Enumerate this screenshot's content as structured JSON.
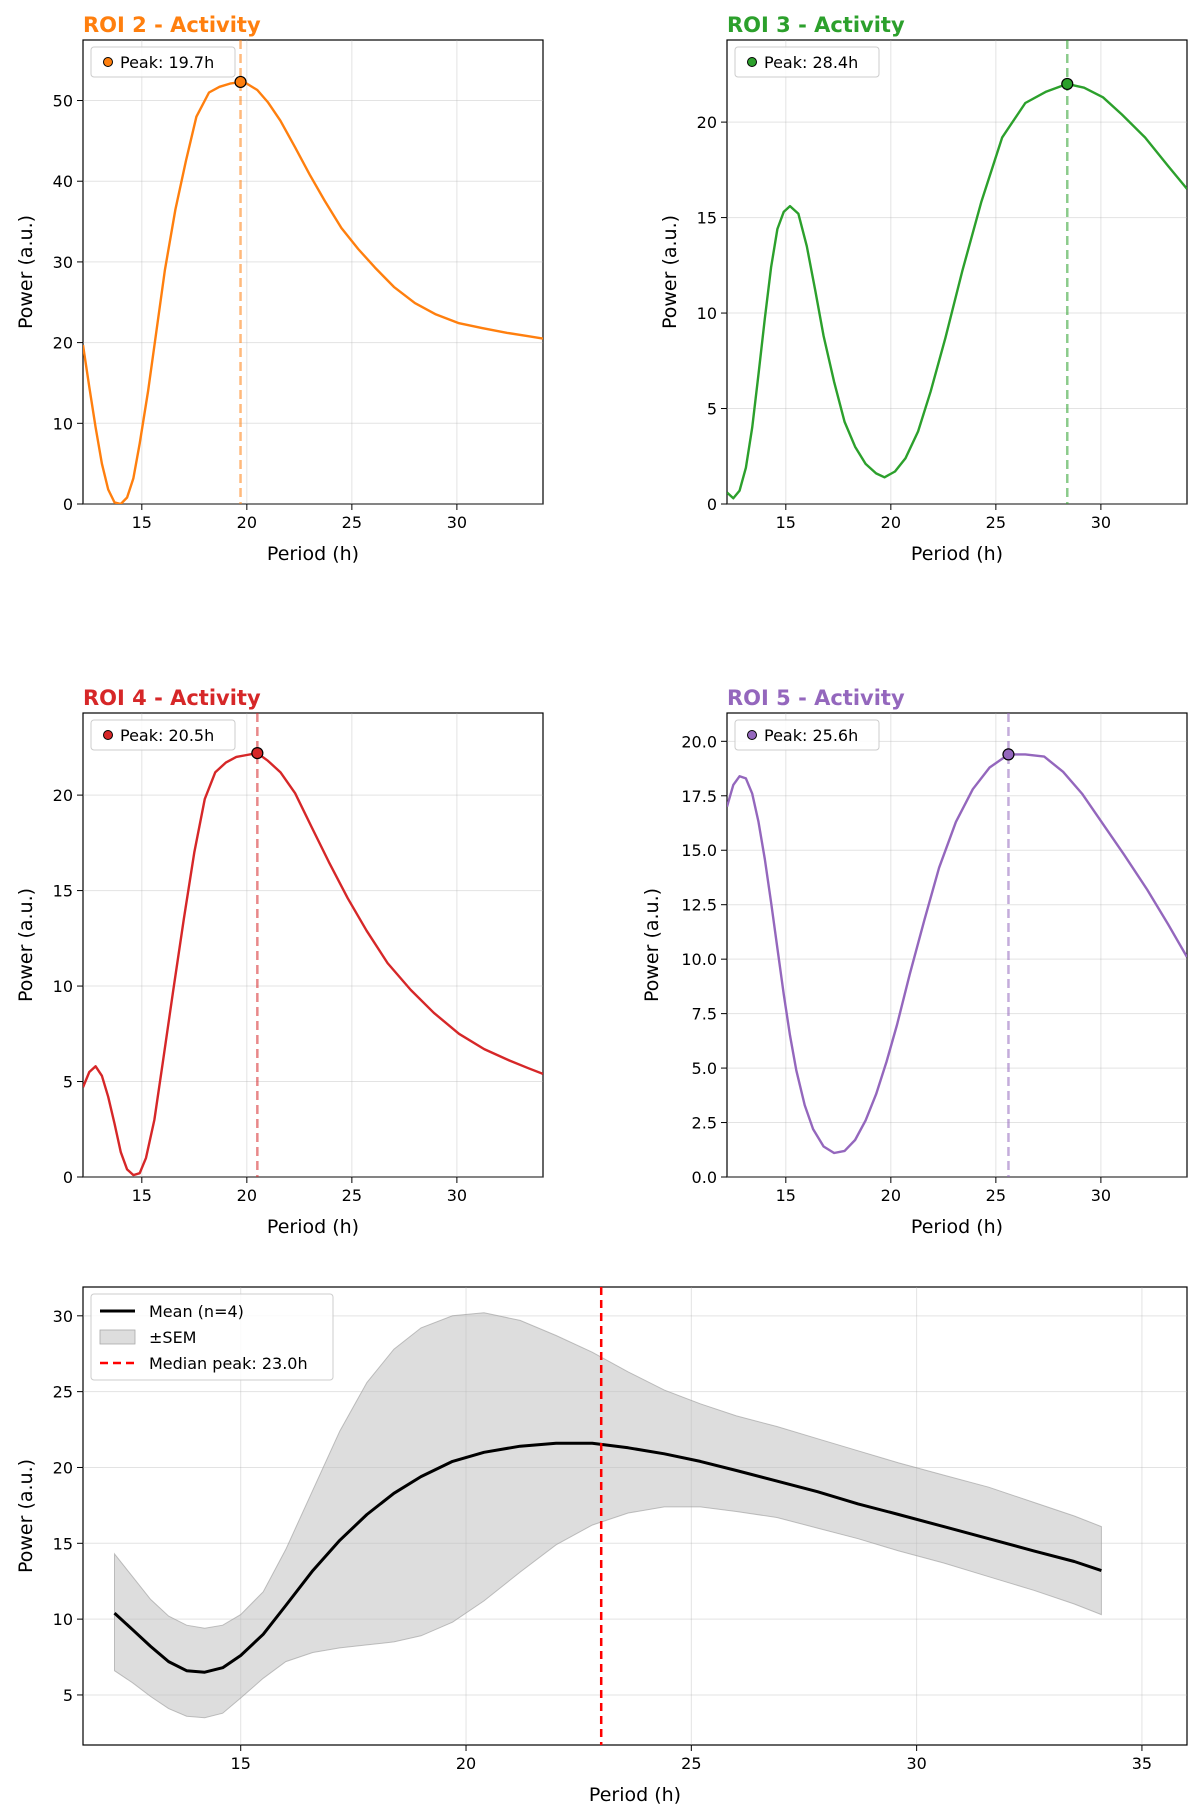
{
  "chart_data": [
    {
      "type": "line",
      "title": "ROI 2 - Activity",
      "color": "#ff7f0e",
      "xlabel": "Period (h)",
      "ylabel": "Power (a.u.)",
      "xlim": [
        12.2,
        34.1
      ],
      "ylim": [
        0,
        57.5
      ],
      "xticks": [
        15,
        20,
        25,
        30
      ],
      "yticks": [
        0,
        10,
        20,
        30,
        40,
        50
      ],
      "grid": true,
      "legend_position": "top-left",
      "peak": {
        "x": 19.7,
        "y": 52.3,
        "label": "Peak: 19.7h"
      },
      "x": [
        12.2,
        12.5,
        12.8,
        13.1,
        13.4,
        13.7,
        14.0,
        14.3,
        14.6,
        14.9,
        15.3,
        15.7,
        16.1,
        16.6,
        17.1,
        17.6,
        18.2,
        18.7,
        19.2,
        19.7,
        20.0,
        20.5,
        21.0,
        21.6,
        22.3,
        23.0,
        23.7,
        24.5,
        25.3,
        26.1,
        27.0,
        28.0,
        29.0,
        30.1,
        31.2,
        32.4,
        33.4,
        34.1
      ],
      "y": [
        19.7,
        14.5,
        9.5,
        5.0,
        1.8,
        0.2,
        0.0,
        0.8,
        3.2,
        7.5,
        14.0,
        21.5,
        29.0,
        36.5,
        42.5,
        48.0,
        51.0,
        51.7,
        52.1,
        52.3,
        52.1,
        51.3,
        49.8,
        47.5,
        44.2,
        40.8,
        37.6,
        34.2,
        31.6,
        29.3,
        26.9,
        24.9,
        23.5,
        22.4,
        21.8,
        21.2,
        20.8,
        20.5
      ]
    },
    {
      "type": "line",
      "title": "ROI 3 - Activity",
      "color": "#2ca02c",
      "xlabel": "Period (h)",
      "ylabel": "Power (a.u.)",
      "xlim": [
        12.2,
        34.1
      ],
      "ylim": [
        0,
        24.3
      ],
      "xticks": [
        15,
        20,
        25,
        30
      ],
      "yticks": [
        0,
        5,
        10,
        15,
        20
      ],
      "grid": true,
      "legend_position": "top-left",
      "peak": {
        "x": 28.4,
        "y": 22.0,
        "label": "Peak: 28.4h"
      },
      "x": [
        12.2,
        12.5,
        12.8,
        13.1,
        13.4,
        13.7,
        14.0,
        14.3,
        14.6,
        14.9,
        15.2,
        15.6,
        16.0,
        16.4,
        16.8,
        17.3,
        17.8,
        18.3,
        18.8,
        19.3,
        19.7,
        20.2,
        20.7,
        21.3,
        21.9,
        22.6,
        23.4,
        24.3,
        25.3,
        26.4,
        27.4,
        28.4,
        29.2,
        30.1,
        31.0,
        32.1,
        33.2,
        34.1
      ],
      "y": [
        0.6,
        0.3,
        0.7,
        1.9,
        4.0,
        6.8,
        9.7,
        12.4,
        14.4,
        15.3,
        15.6,
        15.2,
        13.5,
        11.2,
        8.8,
        6.4,
        4.3,
        3.0,
        2.1,
        1.6,
        1.4,
        1.7,
        2.4,
        3.8,
        5.9,
        8.7,
        12.2,
        15.8,
        19.2,
        21.0,
        21.6,
        22.0,
        21.8,
        21.3,
        20.4,
        19.2,
        17.7,
        16.5
      ]
    },
    {
      "type": "line",
      "title": "ROI 4 - Activity",
      "color": "#d62728",
      "xlabel": "Period (h)",
      "ylabel": "Power (a.u.)",
      "xlim": [
        12.2,
        34.1
      ],
      "ylim": [
        0,
        24.3
      ],
      "xticks": [
        15,
        20,
        25,
        30
      ],
      "yticks": [
        0,
        5,
        10,
        15,
        20
      ],
      "grid": true,
      "legend_position": "top-left",
      "peak": {
        "x": 20.5,
        "y": 22.2,
        "label": "Peak: 20.5h"
      },
      "x": [
        12.2,
        12.5,
        12.8,
        13.1,
        13.4,
        13.7,
        14.0,
        14.3,
        14.6,
        14.9,
        15.2,
        15.6,
        16.0,
        16.5,
        17.0,
        17.5,
        18.0,
        18.5,
        19.0,
        19.5,
        20.0,
        20.5,
        21.0,
        21.6,
        22.3,
        23.1,
        23.9,
        24.8,
        25.7,
        26.7,
        27.8,
        28.9,
        30.1,
        31.3,
        32.5,
        33.4,
        34.1
      ],
      "y": [
        4.7,
        5.5,
        5.8,
        5.3,
        4.2,
        2.8,
        1.3,
        0.4,
        0.1,
        0.2,
        1.0,
        3.0,
        6.0,
        9.8,
        13.5,
        17.0,
        19.8,
        21.2,
        21.7,
        22.0,
        22.1,
        22.2,
        21.8,
        21.2,
        20.1,
        18.3,
        16.5,
        14.6,
        12.9,
        11.2,
        9.8,
        8.6,
        7.5,
        6.7,
        6.1,
        5.7,
        5.4
      ]
    },
    {
      "type": "line",
      "title": "ROI 5 - Activity",
      "color": "#9467bd",
      "xlabel": "Period (h)",
      "ylabel": "Power (a.u.)",
      "xlim": [
        12.2,
        34.1
      ],
      "ylim": [
        0,
        21.3
      ],
      "xticks": [
        15,
        20,
        25,
        30
      ],
      "yticks": [
        0.0,
        2.5,
        5.0,
        7.5,
        10.0,
        12.5,
        15.0,
        17.5,
        20.0
      ],
      "grid": true,
      "legend_position": "top-left",
      "peak": {
        "x": 25.6,
        "y": 19.4,
        "label": "Peak: 25.6h"
      },
      "x": [
        12.2,
        12.5,
        12.8,
        13.1,
        13.4,
        13.7,
        14.0,
        14.3,
        14.6,
        14.9,
        15.2,
        15.5,
        15.9,
        16.3,
        16.8,
        17.3,
        17.8,
        18.3,
        18.8,
        19.3,
        19.8,
        20.3,
        20.9,
        21.6,
        22.3,
        23.1,
        23.9,
        24.7,
        25.6,
        26.4,
        27.3,
        28.2,
        29.1,
        30.1,
        31.1,
        32.2,
        33.2,
        34.1
      ],
      "y": [
        17.0,
        18.0,
        18.4,
        18.3,
        17.6,
        16.3,
        14.6,
        12.6,
        10.5,
        8.4,
        6.5,
        4.9,
        3.3,
        2.2,
        1.4,
        1.1,
        1.2,
        1.7,
        2.6,
        3.8,
        5.3,
        7.0,
        9.3,
        11.8,
        14.2,
        16.3,
        17.8,
        18.8,
        19.4,
        19.4,
        19.3,
        18.6,
        17.6,
        16.2,
        14.8,
        13.2,
        11.6,
        10.1
      ]
    },
    {
      "type": "line",
      "title": "",
      "xlabel": "Period (h)",
      "ylabel": "Power (a.u.)",
      "xlim": [
        11.5,
        36.0
      ],
      "ylim": [
        1.7,
        31.9
      ],
      "xticks": [
        15,
        20,
        25,
        30,
        35
      ],
      "yticks": [
        5,
        10,
        15,
        20,
        25,
        30
      ],
      "grid": true,
      "legend_position": "top-left",
      "legend": [
        "Mean (n=4)",
        "±SEM",
        "Median peak: 23.0h"
      ],
      "median_peak": 23.0,
      "series": [
        {
          "name": "Mean (n=4)",
          "color": "#000000",
          "x": [
            12.2,
            12.6,
            13.0,
            13.4,
            13.8,
            14.2,
            14.6,
            15.0,
            15.5,
            16.0,
            16.6,
            17.2,
            17.8,
            18.4,
            19.0,
            19.7,
            20.4,
            21.2,
            22.0,
            22.8,
            23.6,
            24.4,
            25.2,
            26.0,
            26.9,
            27.8,
            28.7,
            29.6,
            30.6,
            31.6,
            32.6,
            33.5,
            34.1
          ],
          "y": [
            10.4,
            9.3,
            8.2,
            7.2,
            6.6,
            6.5,
            6.8,
            7.6,
            9.0,
            10.9,
            13.2,
            15.2,
            16.9,
            18.3,
            19.4,
            20.4,
            21.0,
            21.4,
            21.6,
            21.6,
            21.3,
            20.9,
            20.4,
            19.8,
            19.1,
            18.4,
            17.6,
            16.9,
            16.1,
            15.3,
            14.5,
            13.8,
            13.2
          ]
        },
        {
          "name": "±SEM",
          "color": "#bbbbbb",
          "x": [
            12.2,
            12.6,
            13.0,
            13.4,
            13.8,
            14.2,
            14.6,
            15.0,
            15.5,
            16.0,
            16.6,
            17.2,
            17.8,
            18.4,
            19.0,
            19.7,
            20.4,
            21.2,
            22.0,
            22.8,
            23.6,
            24.4,
            25.2,
            26.0,
            26.9,
            27.8,
            28.7,
            29.6,
            30.6,
            31.6,
            32.6,
            33.5,
            34.1
          ],
          "upper": [
            14.3,
            12.8,
            11.3,
            10.2,
            9.6,
            9.4,
            9.6,
            10.3,
            11.8,
            14.6,
            18.5,
            22.4,
            25.6,
            27.8,
            29.2,
            30.0,
            30.2,
            29.7,
            28.7,
            27.6,
            26.3,
            25.1,
            24.2,
            23.4,
            22.7,
            21.9,
            21.1,
            20.3,
            19.5,
            18.7,
            17.7,
            16.8,
            16.1
          ],
          "lower": [
            6.6,
            5.8,
            4.9,
            4.1,
            3.6,
            3.5,
            3.8,
            4.8,
            6.1,
            7.2,
            7.8,
            8.1,
            8.3,
            8.5,
            8.9,
            9.8,
            11.2,
            13.1,
            14.9,
            16.2,
            17.0,
            17.4,
            17.4,
            17.1,
            16.7,
            16.0,
            15.3,
            14.5,
            13.7,
            12.8,
            11.9,
            11.0,
            10.3
          ]
        }
      ]
    }
  ]
}
